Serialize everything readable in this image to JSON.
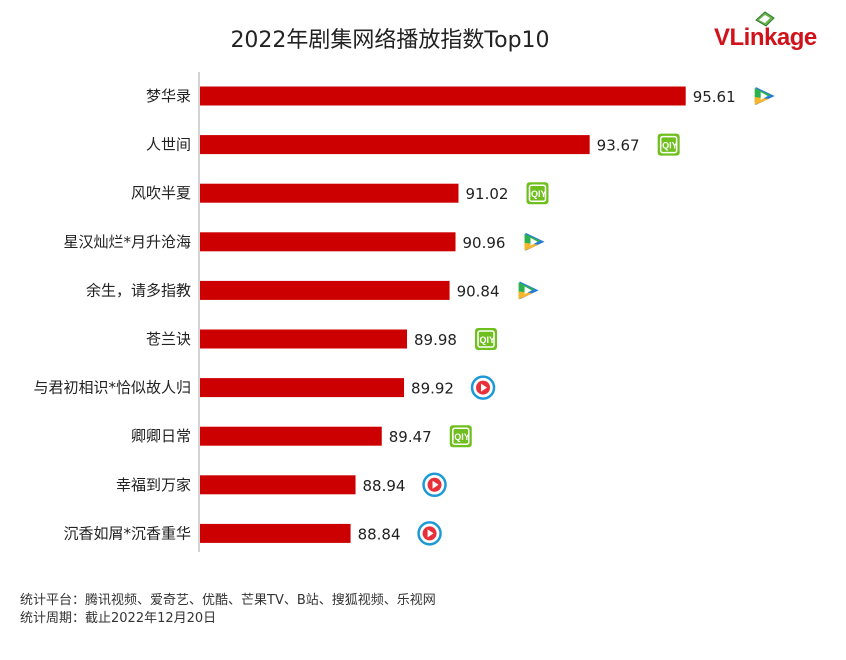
{
  "title": "2022年剧集网络播放指数Top10",
  "logo": {
    "v": "VL",
    "rest": "inkage"
  },
  "footer": {
    "platforms": "统计平台：腾讯视频、爱奇艺、优酷、芒果TV、B站、搜狐视频、乐视网",
    "period": "统计周期：截止2022年12月20日"
  },
  "colors": {
    "bar": "#cc0000",
    "axis": "#aaaaaa",
    "tencent_green": "#2bb24c",
    "tencent_blue": "#2a7bd8",
    "tencent_orange": "#f7b52b",
    "iqiyi_green": "#6fbf1f",
    "youku_blue": "#1d9ad6",
    "youku_red": "#e8303a"
  },
  "chart_data": {
    "type": "bar",
    "orientation": "horizontal",
    "title": "2022年剧集网络播放指数Top10",
    "categories": [
      "梦华录",
      "人世间",
      "风吹半夏",
      "星汉灿烂*月升沧海",
      "余生，请多指教",
      "苍兰诀",
      "与君初相识*恰似故人归",
      "卿卿日常",
      "幸福到万家",
      "沉香如屑*沉香重华"
    ],
    "values": [
      95.61,
      93.67,
      91.02,
      90.96,
      90.84,
      89.98,
      89.92,
      89.47,
      88.94,
      88.84
    ],
    "platform_icons": [
      "tencent-icon",
      "iqiyi-icon",
      "iqiyi-icon",
      "tencent-icon",
      "tencent-icon",
      "iqiyi-icon",
      "youku-icon",
      "iqiyi-icon",
      "youku-icon",
      "youku-icon"
    ],
    "grid": false,
    "legend": false
  }
}
